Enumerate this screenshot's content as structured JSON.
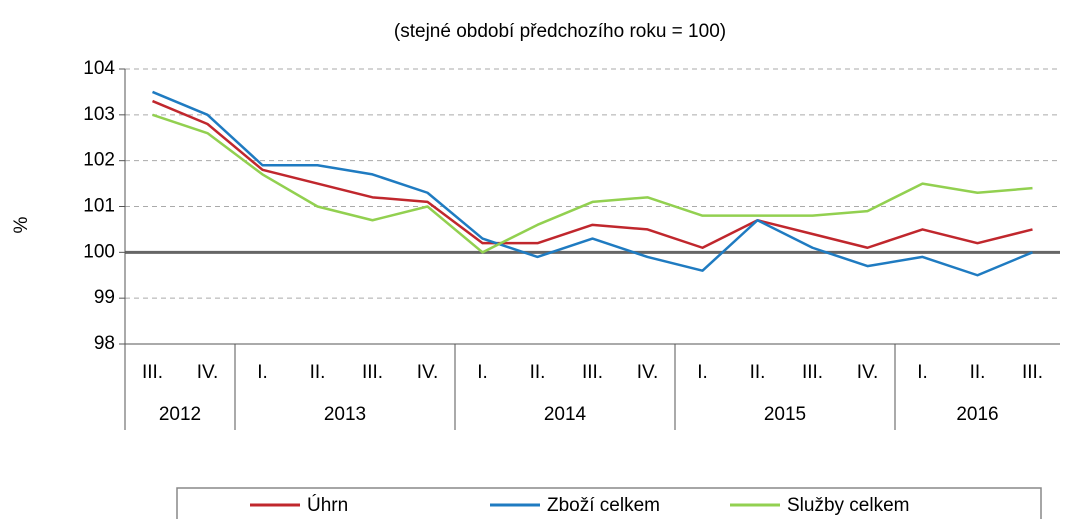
{
  "chart_data": {
    "type": "line",
    "subtitle": "(stejné období předchozího roku = 100)",
    "y_label": "%",
    "categories": [
      {
        "label": "III.",
        "group": "2012"
      },
      {
        "label": "IV.",
        "group": "2012"
      },
      {
        "label": "I.",
        "group": "2013"
      },
      {
        "label": "II.",
        "group": "2013"
      },
      {
        "label": "III.",
        "group": "2013"
      },
      {
        "label": "IV.",
        "group": "2013"
      },
      {
        "label": "I.",
        "group": "2014"
      },
      {
        "label": "II.",
        "group": "2014"
      },
      {
        "label": "III.",
        "group": "2014"
      },
      {
        "label": "IV.",
        "group": "2014"
      },
      {
        "label": "I.",
        "group": "2015"
      },
      {
        "label": "II.",
        "group": "2015"
      },
      {
        "label": "III.",
        "group": "2015"
      },
      {
        "label": "IV.",
        "group": "2015"
      },
      {
        "label": "I.",
        "group": "2016"
      },
      {
        "label": "II.",
        "group": "2016"
      },
      {
        "label": "III.",
        "group": "2016"
      }
    ],
    "series": [
      {
        "name": "Úhrn",
        "color": "#c0272d",
        "values": [
          103.3,
          102.8,
          101.8,
          101.5,
          101.2,
          101.1,
          100.2,
          100.2,
          100.6,
          100.5,
          100.1,
          100.7,
          100.4,
          100.1,
          100.5,
          100.2,
          100.5
        ]
      },
      {
        "name": "Zboží celkem",
        "color": "#1f7bc1",
        "values": [
          103.5,
          103.0,
          101.9,
          101.9,
          101.7,
          101.3,
          100.3,
          99.9,
          100.3,
          99.9,
          99.6,
          100.7,
          100.1,
          99.7,
          99.9,
          99.5,
          100.0
        ]
      },
      {
        "name": "Služby celkem",
        "color": "#92d050",
        "values": [
          103.0,
          102.6,
          101.7,
          101.0,
          100.7,
          101.0,
          100.0,
          100.6,
          101.1,
          101.2,
          100.8,
          100.8,
          100.8,
          100.9,
          101.5,
          101.3,
          101.4
        ]
      }
    ],
    "ylim": [
      98,
      104
    ],
    "yticks": [
      98,
      99,
      100,
      101,
      102,
      103,
      104
    ],
    "grid": true,
    "reference_line": 100,
    "legend": "bottom"
  }
}
